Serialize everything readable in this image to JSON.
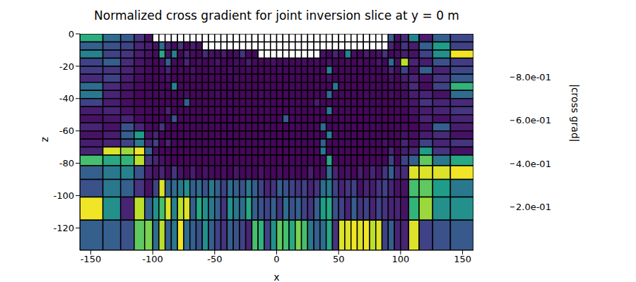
{
  "chart_data": {
    "type": "heatmap",
    "title": "Normalized cross gradient for joint inversion slice at y = 0 m",
    "x_label": "x",
    "y_label": "z",
    "xlim": [
      -158.8,
      158.8
    ],
    "xticks": [
      -150,
      -100,
      -50,
      0,
      50,
      100,
      150
    ],
    "ylim": [
      -133.8,
      0
    ],
    "yticks": [
      -120,
      -100,
      -80,
      -60,
      -40,
      -20,
      0
    ],
    "x_edges": [
      -158.8,
      -140.2,
      -125.9,
      -114.95,
      -106.5,
      -100,
      -95,
      -90,
      -85,
      -80,
      -75,
      -70,
      -65,
      -60,
      -55,
      -50,
      -45,
      -40,
      -35,
      -30,
      -25,
      -20,
      -15,
      -10,
      -5,
      0,
      5,
      10,
      15,
      20,
      25,
      30,
      35,
      40,
      45,
      50,
      55,
      60,
      65,
      70,
      75,
      80,
      85,
      90,
      95,
      100,
      106.5,
      114.95,
      125.9,
      140.2,
      158.8
    ],
    "z_edges": [
      0,
      -5,
      -10,
      -15,
      -20,
      -25,
      -30,
      -35,
      -40,
      -45,
      -50,
      -55,
      -60,
      -65,
      -70,
      -75,
      -81.5,
      -89.95,
      -100.9,
      -115.2,
      -133.8
    ],
    "values": [
      [
        0.62,
        0.35,
        0.28,
        0.15,
        0.05,
        null,
        null,
        null,
        null,
        null,
        null,
        null,
        null,
        null,
        null,
        null,
        null,
        null,
        null,
        null,
        null,
        null,
        null,
        null,
        null,
        null,
        null,
        null,
        null,
        null,
        null,
        null,
        null,
        null,
        null,
        null,
        null,
        null,
        null,
        null,
        null,
        null,
        null,
        0.3,
        0.05,
        0.12,
        0.45,
        0.08,
        0.3,
        0.22
      ],
      [
        0.3,
        0.25,
        0.2,
        0.1,
        0.08,
        0.05,
        0.35,
        0.1,
        0.03,
        0.15,
        0.02,
        0.08,
        0.04,
        null,
        null,
        null,
        null,
        null,
        null,
        null,
        null,
        null,
        null,
        null,
        null,
        null,
        null,
        null,
        null,
        null,
        null,
        null,
        null,
        null,
        null,
        null,
        null,
        null,
        null,
        null,
        null,
        null,
        null,
        0.1,
        0.02,
        0.15,
        0.08,
        0.3,
        0.55,
        0.2
      ],
      [
        0.45,
        0.2,
        0.15,
        0.08,
        0.05,
        0.03,
        0.6,
        0.05,
        0.45,
        0.02,
        0.1,
        0.04,
        0.02,
        0.12,
        0.05,
        0.03,
        0.08,
        0.02,
        0.04,
        0.15,
        0.03,
        0.02,
        null,
        null,
        null,
        null,
        null,
        null,
        null,
        null,
        null,
        null,
        0.05,
        0.02,
        0.1,
        0.03,
        0.45,
        0.04,
        0.02,
        0.08,
        0.03,
        0.05,
        0.15,
        0.02,
        0.04,
        0.08,
        0.05,
        0.2,
        0.5,
        0.98
      ],
      [
        0.2,
        0.3,
        0.12,
        0.06,
        0.03,
        0.02,
        0.05,
        0.3,
        0.03,
        0.02,
        0.1,
        0.02,
        0.04,
        0.02,
        0.03,
        0.06,
        0.02,
        0.02,
        0.04,
        0.02,
        0.08,
        0.03,
        0.02,
        0.02,
        0.05,
        0.02,
        0.03,
        0.02,
        0.02,
        0.04,
        0.02,
        0.03,
        0.02,
        0.05,
        0.02,
        0.02,
        0.03,
        0.02,
        0.04,
        0.02,
        0.02,
        0.06,
        0.02,
        0.35,
        0.05,
        0.9,
        0.1,
        0.08,
        0.25,
        0.18
      ],
      [
        0.18,
        0.15,
        0.1,
        0.05,
        0.03,
        0.02,
        0.04,
        0.1,
        0.02,
        0.03,
        0.02,
        0.05,
        0.02,
        0.02,
        0.03,
        0.02,
        0.02,
        0.04,
        0.02,
        0.02,
        0.03,
        0.02,
        0.02,
        0.02,
        0.02,
        0.03,
        0.02,
        0.02,
        0.02,
        0.02,
        0.03,
        0.02,
        0.02,
        0.45,
        0.02,
        0.02,
        0.02,
        0.03,
        0.02,
        0.02,
        0.02,
        0.02,
        0.04,
        0.1,
        0.03,
        0.2,
        0.05,
        0.3,
        0.1,
        0.22
      ],
      [
        0.12,
        0.2,
        0.08,
        0.04,
        0.02,
        0.02,
        0.03,
        0.05,
        0.02,
        0.02,
        0.02,
        0.03,
        0.02,
        0.02,
        0.02,
        0.02,
        0.02,
        0.02,
        0.03,
        0.02,
        0.02,
        0.02,
        0.02,
        0.02,
        0.02,
        0.02,
        0.02,
        0.02,
        0.02,
        0.02,
        0.02,
        0.02,
        0.02,
        0.05,
        0.02,
        0.02,
        0.02,
        0.02,
        0.02,
        0.02,
        0.02,
        0.02,
        0.02,
        0.05,
        0.02,
        0.08,
        0.1,
        0.05,
        0.15,
        0.28
      ],
      [
        0.35,
        0.12,
        0.06,
        0.03,
        0.02,
        0.02,
        0.02,
        0.02,
        0.45,
        0.02,
        0.02,
        0.02,
        0.02,
        0.02,
        0.02,
        0.02,
        0.02,
        0.02,
        0.02,
        0.02,
        0.02,
        0.02,
        0.02,
        0.02,
        0.02,
        0.02,
        0.02,
        0.02,
        0.02,
        0.02,
        0.02,
        0.02,
        0.02,
        0.02,
        0.4,
        0.02,
        0.02,
        0.02,
        0.02,
        0.02,
        0.02,
        0.02,
        0.02,
        0.03,
        0.02,
        0.05,
        0.12,
        0.03,
        0.2,
        0.65
      ],
      [
        0.4,
        0.1,
        0.05,
        0.02,
        0.02,
        0.02,
        0.03,
        0.02,
        0.02,
        0.02,
        0.04,
        0.02,
        0.02,
        0.02,
        0.02,
        0.03,
        0.02,
        0.02,
        0.02,
        0.02,
        0.02,
        0.02,
        0.03,
        0.02,
        0.02,
        0.02,
        0.02,
        0.02,
        0.02,
        0.02,
        0.02,
        0.02,
        0.02,
        0.35,
        0.02,
        0.02,
        0.02,
        0.02,
        0.02,
        0.03,
        0.02,
        0.02,
        0.02,
        0.04,
        0.02,
        0.03,
        0.08,
        0.1,
        0.05,
        0.35
      ],
      [
        0.2,
        0.08,
        0.04,
        0.02,
        0.02,
        0.02,
        0.02,
        0.02,
        0.02,
        0.02,
        0.3,
        0.02,
        0.02,
        0.02,
        0.02,
        0.02,
        0.02,
        0.02,
        0.02,
        0.02,
        0.02,
        0.02,
        0.02,
        0.02,
        0.02,
        0.02,
        0.02,
        0.02,
        0.02,
        0.02,
        0.02,
        0.08,
        0.02,
        0.02,
        0.02,
        0.02,
        0.02,
        0.02,
        0.02,
        0.02,
        0.02,
        0.02,
        0.02,
        0.02,
        0.02,
        0.04,
        0.06,
        0.15,
        0.1,
        0.12
      ],
      [
        0.08,
        0.1,
        0.05,
        0.03,
        0.02,
        0.02,
        0.02,
        0.1,
        0.02,
        0.02,
        0.02,
        0.02,
        0.02,
        0.02,
        0.02,
        0.02,
        0.02,
        0.02,
        0.02,
        0.02,
        0.02,
        0.02,
        0.02,
        0.02,
        0.02,
        0.02,
        0.02,
        0.02,
        0.02,
        0.02,
        0.02,
        0.02,
        0.02,
        0.4,
        0.02,
        0.02,
        0.02,
        0.02,
        0.02,
        0.02,
        0.02,
        0.02,
        0.02,
        0.02,
        0.02,
        0.02,
        0.05,
        0.08,
        0.1,
        0.15
      ],
      [
        0.05,
        0.06,
        0.1,
        0.03,
        0.02,
        0.02,
        0.02,
        0.02,
        0.25,
        0.02,
        0.02,
        0.02,
        0.02,
        0.02,
        0.02,
        0.02,
        0.02,
        0.02,
        0.02,
        0.02,
        0.02,
        0.02,
        0.02,
        0.02,
        0.02,
        0.02,
        0.3,
        0.02,
        0.02,
        0.02,
        0.02,
        0.02,
        0.02,
        0.02,
        0.02,
        0.02,
        0.02,
        0.02,
        0.02,
        0.02,
        0.02,
        0.02,
        0.02,
        0.02,
        0.02,
        0.02,
        0.03,
        0.1,
        0.05,
        0.1
      ],
      [
        0.1,
        0.05,
        0.25,
        0.1,
        0.03,
        0.02,
        0.15,
        0.02,
        0.02,
        0.02,
        0.02,
        0.02,
        0.02,
        0.02,
        0.02,
        0.02,
        0.02,
        0.02,
        0.02,
        0.02,
        0.02,
        0.02,
        0.02,
        0.02,
        0.02,
        0.02,
        0.02,
        0.02,
        0.02,
        0.02,
        0.02,
        0.02,
        0.35,
        0.02,
        0.02,
        0.02,
        0.02,
        0.02,
        0.02,
        0.02,
        0.02,
        0.02,
        0.02,
        0.02,
        0.02,
        0.03,
        0.02,
        0.05,
        0.3,
        0.08
      ],
      [
        0.05,
        0.08,
        0.3,
        0.55,
        0.05,
        0.1,
        0.02,
        0.02,
        0.02,
        0.02,
        0.02,
        0.02,
        0.02,
        0.02,
        0.02,
        0.02,
        0.02,
        0.02,
        0.02,
        0.02,
        0.02,
        0.02,
        0.02,
        0.02,
        0.02,
        0.02,
        0.02,
        0.02,
        0.02,
        0.02,
        0.02,
        0.02,
        0.02,
        0.45,
        0.02,
        0.02,
        0.02,
        0.02,
        0.02,
        0.02,
        0.02,
        0.02,
        0.02,
        0.02,
        0.02,
        0.05,
        0.04,
        0.08,
        0.12,
        0.05
      ],
      [
        0.08,
        0.1,
        0.2,
        0.4,
        0.1,
        0.2,
        0.02,
        0.1,
        0.02,
        0.02,
        0.02,
        0.02,
        0.02,
        0.02,
        0.02,
        0.02,
        0.02,
        0.02,
        0.02,
        0.02,
        0.02,
        0.02,
        0.02,
        0.02,
        0.02,
        0.02,
        0.02,
        0.02,
        0.02,
        0.02,
        0.02,
        0.02,
        0.3,
        0.02,
        0.02,
        0.02,
        0.02,
        0.02,
        0.02,
        0.02,
        0.02,
        0.02,
        0.05,
        0.02,
        0.02,
        0.1,
        0.05,
        0.2,
        0.1,
        0.15
      ],
      [
        0.1,
        0.95,
        0.85,
        0.98,
        0.3,
        0.05,
        0.02,
        0.02,
        0.02,
        0.02,
        0.02,
        0.02,
        0.02,
        0.02,
        0.02,
        0.02,
        0.02,
        0.02,
        0.02,
        0.02,
        0.02,
        0.02,
        0.02,
        0.02,
        0.02,
        0.02,
        0.02,
        0.02,
        0.02,
        0.02,
        0.02,
        0.02,
        0.4,
        0.02,
        0.02,
        0.02,
        0.02,
        0.02,
        0.02,
        0.02,
        0.02,
        0.02,
        0.02,
        0.1,
        0.02,
        0.08,
        0.1,
        0.55,
        0.15,
        0.05
      ],
      [
        0.7,
        0.6,
        0.65,
        0.9,
        0.15,
        0.1,
        0.05,
        0.03,
        0.02,
        0.02,
        0.02,
        0.02,
        0.02,
        0.02,
        0.02,
        0.02,
        0.02,
        0.02,
        0.02,
        0.02,
        0.02,
        0.02,
        0.02,
        0.02,
        0.02,
        0.02,
        0.02,
        0.02,
        0.02,
        0.02,
        0.02,
        0.02,
        0.02,
        0.6,
        0.02,
        0.02,
        0.02,
        0.02,
        0.02,
        0.02,
        0.02,
        0.02,
        0.02,
        0.2,
        0.02,
        0.2,
        0.3,
        0.75,
        0.4,
        0.6
      ],
      [
        0.3,
        0.4,
        0.45,
        0.25,
        0.08,
        0.05,
        0.1,
        0.03,
        0.15,
        0.05,
        0.02,
        0.08,
        0.02,
        0.05,
        0.03,
        0.02,
        0.04,
        0.02,
        0.06,
        0.02,
        0.03,
        0.02,
        0.05,
        0.02,
        0.02,
        0.04,
        0.02,
        0.03,
        0.02,
        0.02,
        0.08,
        0.02,
        0.05,
        0.35,
        0.1,
        0.03,
        0.05,
        0.02,
        0.08,
        0.04,
        0.1,
        0.05,
        0.15,
        0.3,
        0.1,
        0.12,
        0.95,
        0.95,
        0.95,
        0.98
      ],
      [
        0.25,
        0.4,
        0.3,
        0.15,
        0.05,
        0.2,
        0.95,
        0.3,
        0.35,
        0.4,
        0.5,
        0.3,
        0.35,
        0.25,
        0.4,
        0.3,
        0.2,
        0.35,
        0.3,
        0.25,
        0.4,
        0.3,
        0.2,
        0.1,
        0.15,
        0.3,
        0.25,
        0.2,
        0.15,
        0.2,
        0.1,
        0.15,
        0.35,
        0.4,
        0.2,
        0.1,
        0.15,
        0.2,
        0.05,
        0.1,
        0.08,
        0.15,
        0.2,
        0.1,
        0.05,
        0.05,
        0.7,
        0.75,
        0.55,
        0.4
      ],
      [
        0.98,
        0.5,
        0.1,
        0.9,
        0.3,
        0.5,
        0.7,
        0.95,
        0.45,
        0.9,
        0.95,
        0.3,
        0.6,
        0.5,
        0.4,
        0.3,
        0.15,
        0.5,
        0.4,
        0.35,
        0.6,
        0.3,
        0.25,
        0.2,
        0.3,
        0.15,
        0.35,
        0.25,
        0.3,
        0.2,
        0.15,
        0.3,
        0.55,
        0.6,
        0.25,
        0.2,
        0.1,
        0.3,
        0.15,
        0.2,
        0.1,
        0.2,
        0.15,
        0.1,
        0.1,
        0.05,
        0.65,
        0.85,
        0.5,
        0.5
      ],
      [
        0.3,
        0.3,
        0.25,
        0.75,
        0.8,
        0.35,
        0.9,
        0.3,
        0.4,
        0.98,
        0.35,
        0.3,
        0.25,
        0.5,
        0.3,
        0.2,
        0.15,
        0.3,
        0.25,
        0.2,
        0.1,
        0.7,
        0.65,
        0.2,
        0.5,
        0.75,
        0.7,
        0.6,
        0.8,
        0.7,
        0.4,
        0.3,
        0.35,
        0.6,
        0.15,
        0.95,
        0.95,
        0.98,
        0.95,
        0.98,
        0.9,
        0.95,
        0.2,
        0.3,
        0.1,
        0.1,
        0.95,
        0.2,
        0.25,
        0.28
      ]
    ],
    "colorbar": {
      "label": "|cross grad|",
      "range": [
        0,
        1
      ],
      "ticks": [
        {
          "value": 0.2,
          "label": "2.0e-01"
        },
        {
          "value": 0.4,
          "label": "4.0e-01"
        },
        {
          "value": 0.6,
          "label": "6.0e-01"
        },
        {
          "value": 0.8,
          "label": "8.0e-01"
        }
      ]
    }
  }
}
